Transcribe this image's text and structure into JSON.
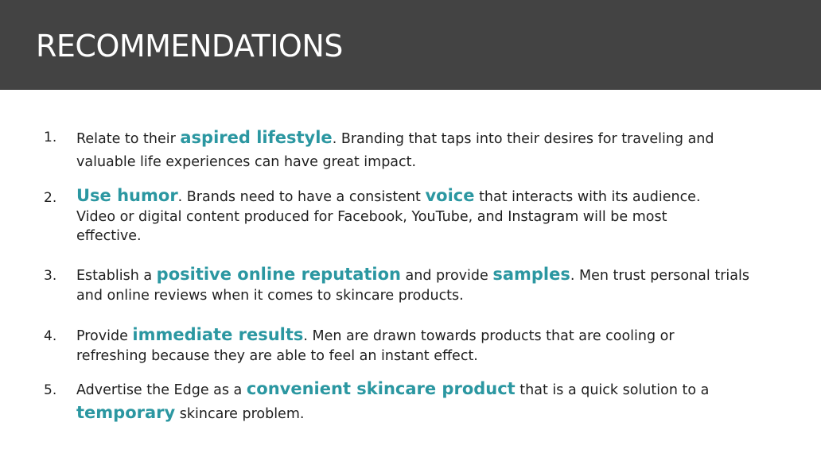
{
  "slide": {
    "title": "RECOMMENDATIONS"
  },
  "colors": {
    "header_bg": "#434343",
    "title_text": "#ffffff",
    "body_text": "#1f1f1f",
    "highlight": "#2b97a1"
  },
  "items": [
    {
      "number": "1.",
      "l1a": "Relate to their ",
      "l1b": "aspired lifestyle",
      "l1c": ".  Branding that taps into their desires for traveling and",
      "l2a": "valuable life experiences can have great impact."
    },
    {
      "number": "2.",
      "l1a": "Use humor",
      "l1b": ". Brands need to have a consistent ",
      "l1c": "voice",
      "l1d": " that interacts with its audience.",
      "l2a": "Video or digital content produced for Facebook, YouTube, and Instagram will be most",
      "l3a": "effective."
    },
    {
      "number": "3.",
      "l1a": "Establish a ",
      "l1b": "positive online reputation",
      "l1c": " and provide ",
      "l1d": "samples",
      "l1e": ". Men trust personal trials",
      "l2a": "and online reviews when it comes to skincare products."
    },
    {
      "number": "4.",
      "l1a": "Provide ",
      "l1b": "immediate results",
      "l1c": ". Men are drawn towards products that are cooling or",
      "l2a": "refreshing because they are able to feel an instant effect."
    },
    {
      "number": "5.",
      "l1a": "Advertise the Edge as a ",
      "l1b": "convenient skincare product",
      "l1c": " that is a quick solution to a",
      "l2a": "temporary",
      "l2b": " skincare problem."
    }
  ]
}
